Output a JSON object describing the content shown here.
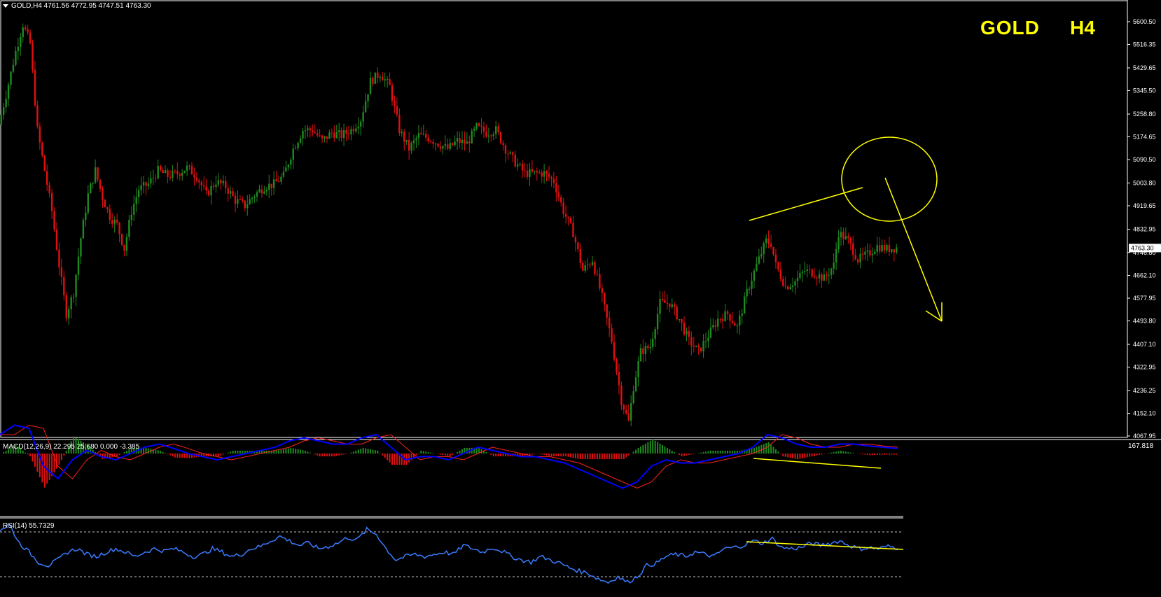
{
  "header": {
    "symbol_line": "GOLD,H4  4761.56 4772.95 4747.51 4763.30"
  },
  "overlay_title": {
    "symbol": "GOLD",
    "timeframe": "H4"
  },
  "colors": {
    "background": "#000000",
    "bull": "#1f8a1f",
    "bear": "#e01010",
    "axis": "#ffffff",
    "annotation": "#ffff00",
    "macd_line": "#0000ff",
    "signal_line": "#ff2020",
    "rsi_line": "#3b7bff"
  },
  "indicators": {
    "macd_label": "MACD(12,26,9) 22.295 25.680 0.000 -3.385",
    "macd_scale_top": "167.818",
    "rsi_label": "RSI(14) 55.7329"
  },
  "chart_data": [
    {
      "type": "candlestick",
      "title": "GOLD,H4",
      "current_price": 4763.3,
      "ohlc_last": {
        "open": 4761.56,
        "high": 4772.95,
        "low": 4747.51,
        "close": 4763.3
      },
      "ylim": [
        4067.95,
        5640
      ],
      "y_ticks": [
        "5600.50",
        "5516.35",
        "5429.65",
        "5345.50",
        "5258.80",
        "5174.65",
        "5090.50",
        "5003.80",
        "4919.65",
        "4832.95",
        "4746.80",
        "4662.10",
        "4577.95",
        "4493.80",
        "4407.10",
        "4322.95",
        "4236.25",
        "4152.10",
        "4067.95"
      ],
      "price_path": [
        [
          0,
          5220
        ],
        [
          3,
          5330
        ],
        [
          7,
          5490
        ],
        [
          10,
          5590
        ],
        [
          13,
          5520
        ],
        [
          16,
          5200
        ],
        [
          19,
          5050
        ],
        [
          22,
          4900
        ],
        [
          25,
          4700
        ],
        [
          28,
          4520
        ],
        [
          31,
          4600
        ],
        [
          34,
          4800
        ],
        [
          37,
          4960
        ],
        [
          40,
          5050
        ],
        [
          43,
          4950
        ],
        [
          46,
          4880
        ],
        [
          49,
          4850
        ],
        [
          52,
          4760
        ],
        [
          55,
          4900
        ],
        [
          58,
          4980
        ],
        [
          62,
          5000
        ],
        [
          66,
          5050
        ],
        [
          70,
          5030
        ],
        [
          74,
          5040
        ],
        [
          78,
          5060
        ],
        [
          82,
          5030
        ],
        [
          86,
          4960
        ],
        [
          90,
          5010
        ],
        [
          94,
          4990
        ],
        [
          98,
          4940
        ],
        [
          102,
          4920
        ],
        [
          106,
          4960
        ],
        [
          110,
          4990
        ],
        [
          114,
          5000
        ],
        [
          118,
          5030
        ],
        [
          122,
          5130
        ],
        [
          126,
          5200
        ],
        [
          130,
          5200
        ],
        [
          134,
          5160
        ],
        [
          138,
          5190
        ],
        [
          142,
          5180
        ],
        [
          146,
          5200
        ],
        [
          150,
          5240
        ],
        [
          154,
          5380
        ],
        [
          158,
          5410
        ],
        [
          162,
          5360
        ],
        [
          166,
          5200
        ],
        [
          170,
          5130
        ],
        [
          174,
          5180
        ],
        [
          178,
          5170
        ],
        [
          182,
          5150
        ],
        [
          186,
          5130
        ],
        [
          190,
          5160
        ],
        [
          194,
          5150
        ],
        [
          198,
          5210
        ],
        [
          202,
          5190
        ],
        [
          206,
          5200
        ],
        [
          210,
          5130
        ],
        [
          214,
          5080
        ],
        [
          218,
          5040
        ],
        [
          222,
          5040
        ],
        [
          226,
          5040
        ],
        [
          230,
          5010
        ],
        [
          234,
          4900
        ],
        [
          238,
          4820
        ],
        [
          242,
          4680
        ],
        [
          246,
          4720
        ],
        [
          250,
          4580
        ],
        [
          254,
          4420
        ],
        [
          258,
          4200
        ],
        [
          261,
          4120
        ],
        [
          263,
          4250
        ],
        [
          266,
          4380
        ],
        [
          270,
          4400
        ],
        [
          274,
          4560
        ],
        [
          278,
          4560
        ],
        [
          282,
          4500
        ],
        [
          286,
          4420
        ],
        [
          290,
          4380
        ],
        [
          294,
          4440
        ],
        [
          298,
          4500
        ],
        [
          302,
          4520
        ],
        [
          306,
          4470
        ],
        [
          310,
          4600
        ],
        [
          314,
          4700
        ],
        [
          318,
          4790
        ],
        [
          320,
          4780
        ],
        [
          322,
          4700
        ],
        [
          326,
          4620
        ],
        [
          330,
          4640
        ],
        [
          334,
          4680
        ],
        [
          338,
          4670
        ],
        [
          342,
          4650
        ],
        [
          346,
          4700
        ],
        [
          348,
          4820
        ],
        [
          352,
          4790
        ],
        [
          356,
          4720
        ],
        [
          360,
          4740
        ],
        [
          364,
          4770
        ],
        [
          368,
          4760
        ],
        [
          372,
          4765
        ]
      ],
      "annotations": {
        "trend_line": "resistance trendline drawn from recent swing high",
        "circle": "reversal zone",
        "arrow": "projected downside move"
      }
    },
    {
      "type": "macd",
      "params": [
        12,
        26,
        9
      ],
      "values": {
        "macd": 22.295,
        "signal": 25.68,
        "extra1": 0.0,
        "extra2": -3.385
      },
      "macd_path": [
        [
          0,
          30
        ],
        [
          6,
          45
        ],
        [
          12,
          40
        ],
        [
          18,
          -20
        ],
        [
          24,
          -40
        ],
        [
          30,
          -10
        ],
        [
          36,
          5
        ],
        [
          42,
          -5
        ],
        [
          48,
          -10
        ],
        [
          54,
          0
        ],
        [
          60,
          10
        ],
        [
          66,
          15
        ],
        [
          72,
          8
        ],
        [
          78,
          0
        ],
        [
          84,
          -5
        ],
        [
          90,
          -10
        ],
        [
          96,
          -5
        ],
        [
          102,
          0
        ],
        [
          108,
          5
        ],
        [
          114,
          10
        ],
        [
          120,
          20
        ],
        [
          126,
          25
        ],
        [
          132,
          20
        ],
        [
          138,
          15
        ],
        [
          144,
          15
        ],
        [
          150,
          25
        ],
        [
          156,
          30
        ],
        [
          162,
          10
        ],
        [
          168,
          -10
        ],
        [
          174,
          -5
        ],
        [
          180,
          -5
        ],
        [
          186,
          -10
        ],
        [
          192,
          0
        ],
        [
          198,
          10
        ],
        [
          204,
          5
        ],
        [
          210,
          0
        ],
        [
          216,
          -5
        ],
        [
          222,
          -5
        ],
        [
          228,
          -10
        ],
        [
          234,
          -15
        ],
        [
          240,
          -25
        ],
        [
          246,
          -35
        ],
        [
          252,
          -45
        ],
        [
          258,
          -55
        ],
        [
          264,
          -45
        ],
        [
          270,
          -20
        ],
        [
          276,
          -10
        ],
        [
          282,
          -15
        ],
        [
          288,
          -15
        ],
        [
          294,
          -10
        ],
        [
          300,
          -5
        ],
        [
          306,
          0
        ],
        [
          312,
          10
        ],
        [
          318,
          30
        ],
        [
          324,
          25
        ],
        [
          330,
          15
        ],
        [
          336,
          10
        ],
        [
          342,
          10
        ],
        [
          348,
          15
        ],
        [
          354,
          15
        ],
        [
          360,
          12
        ],
        [
          366,
          10
        ],
        [
          372,
          8
        ]
      ]
    },
    {
      "type": "rsi",
      "period": 14,
      "value": 55.7329,
      "levels": [
        70,
        30
      ],
      "rsi_path": [
        [
          0,
          72
        ],
        [
          4,
          76
        ],
        [
          8,
          60
        ],
        [
          12,
          52
        ],
        [
          16,
          43
        ],
        [
          20,
          40
        ],
        [
          24,
          45
        ],
        [
          28,
          52
        ],
        [
          32,
          55
        ],
        [
          36,
          50
        ],
        [
          40,
          48
        ],
        [
          44,
          52
        ],
        [
          48,
          55
        ],
        [
          52,
          52
        ],
        [
          56,
          48
        ],
        [
          60,
          52
        ],
        [
          64,
          55
        ],
        [
          68,
          53
        ],
        [
          72,
          55
        ],
        [
          76,
          52
        ],
        [
          80,
          48
        ],
        [
          84,
          50
        ],
        [
          88,
          55
        ],
        [
          92,
          52
        ],
        [
          96,
          48
        ],
        [
          100,
          50
        ],
        [
          104,
          55
        ],
        [
          108,
          57
        ],
        [
          112,
          62
        ],
        [
          116,
          66
        ],
        [
          120,
          62
        ],
        [
          124,
          58
        ],
        [
          128,
          60
        ],
        [
          132,
          55
        ],
        [
          136,
          57
        ],
        [
          140,
          60
        ],
        [
          144,
          65
        ],
        [
          148,
          63
        ],
        [
          152,
          72
        ],
        [
          156,
          68
        ],
        [
          160,
          55
        ],
        [
          164,
          45
        ],
        [
          168,
          48
        ],
        [
          172,
          50
        ],
        [
          176,
          48
        ],
        [
          180,
          50
        ],
        [
          184,
          52
        ],
        [
          188,
          50
        ],
        [
          192,
          58
        ],
        [
          196,
          55
        ],
        [
          200,
          52
        ],
        [
          204,
          56
        ],
        [
          208,
          53
        ],
        [
          212,
          48
        ],
        [
          216,
          45
        ],
        [
          220,
          43
        ],
        [
          224,
          48
        ],
        [
          228,
          45
        ],
        [
          232,
          42
        ],
        [
          236,
          38
        ],
        [
          240,
          35
        ],
        [
          244,
          33
        ],
        [
          248,
          28
        ],
        [
          252,
          25
        ],
        [
          256,
          30
        ],
        [
          260,
          25
        ],
        [
          264,
          30
        ],
        [
          268,
          40
        ],
        [
          272,
          42
        ],
        [
          276,
          48
        ],
        [
          280,
          50
        ],
        [
          284,
          48
        ],
        [
          288,
          52
        ],
        [
          292,
          50
        ],
        [
          296,
          48
        ],
        [
          300,
          55
        ],
        [
          304,
          56
        ],
        [
          308,
          58
        ],
        [
          312,
          62
        ],
        [
          316,
          60
        ],
        [
          320,
          64
        ],
        [
          324,
          56
        ],
        [
          328,
          55
        ],
        [
          332,
          56
        ],
        [
          336,
          60
        ],
        [
          340,
          58
        ],
        [
          344,
          60
        ],
        [
          348,
          62
        ],
        [
          352,
          58
        ],
        [
          356,
          55
        ],
        [
          360,
          56
        ],
        [
          364,
          55
        ],
        [
          368,
          57
        ],
        [
          372,
          55.73
        ]
      ]
    }
  ]
}
